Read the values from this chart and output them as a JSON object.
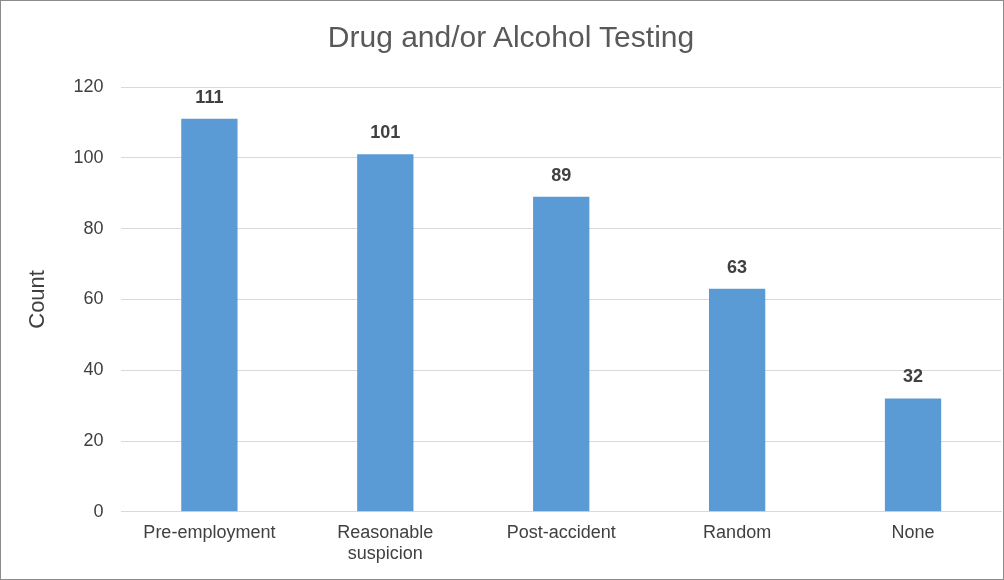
{
  "chart_data": {
    "type": "bar",
    "title": "Drug and/or Alcohol Testing",
    "ylabel": "Count",
    "categories": [
      "Pre-employment",
      "Reasonable suspicion",
      "Post-accident",
      "Random",
      "None"
    ],
    "values": [
      111,
      101,
      89,
      63,
      32
    ],
    "color": "#5b9bd5",
    "ylim": [
      0,
      120
    ],
    "yticks": [
      0,
      20,
      40,
      60,
      80,
      100,
      120
    ],
    "grid": "y",
    "legend": false,
    "data_labels": true
  }
}
